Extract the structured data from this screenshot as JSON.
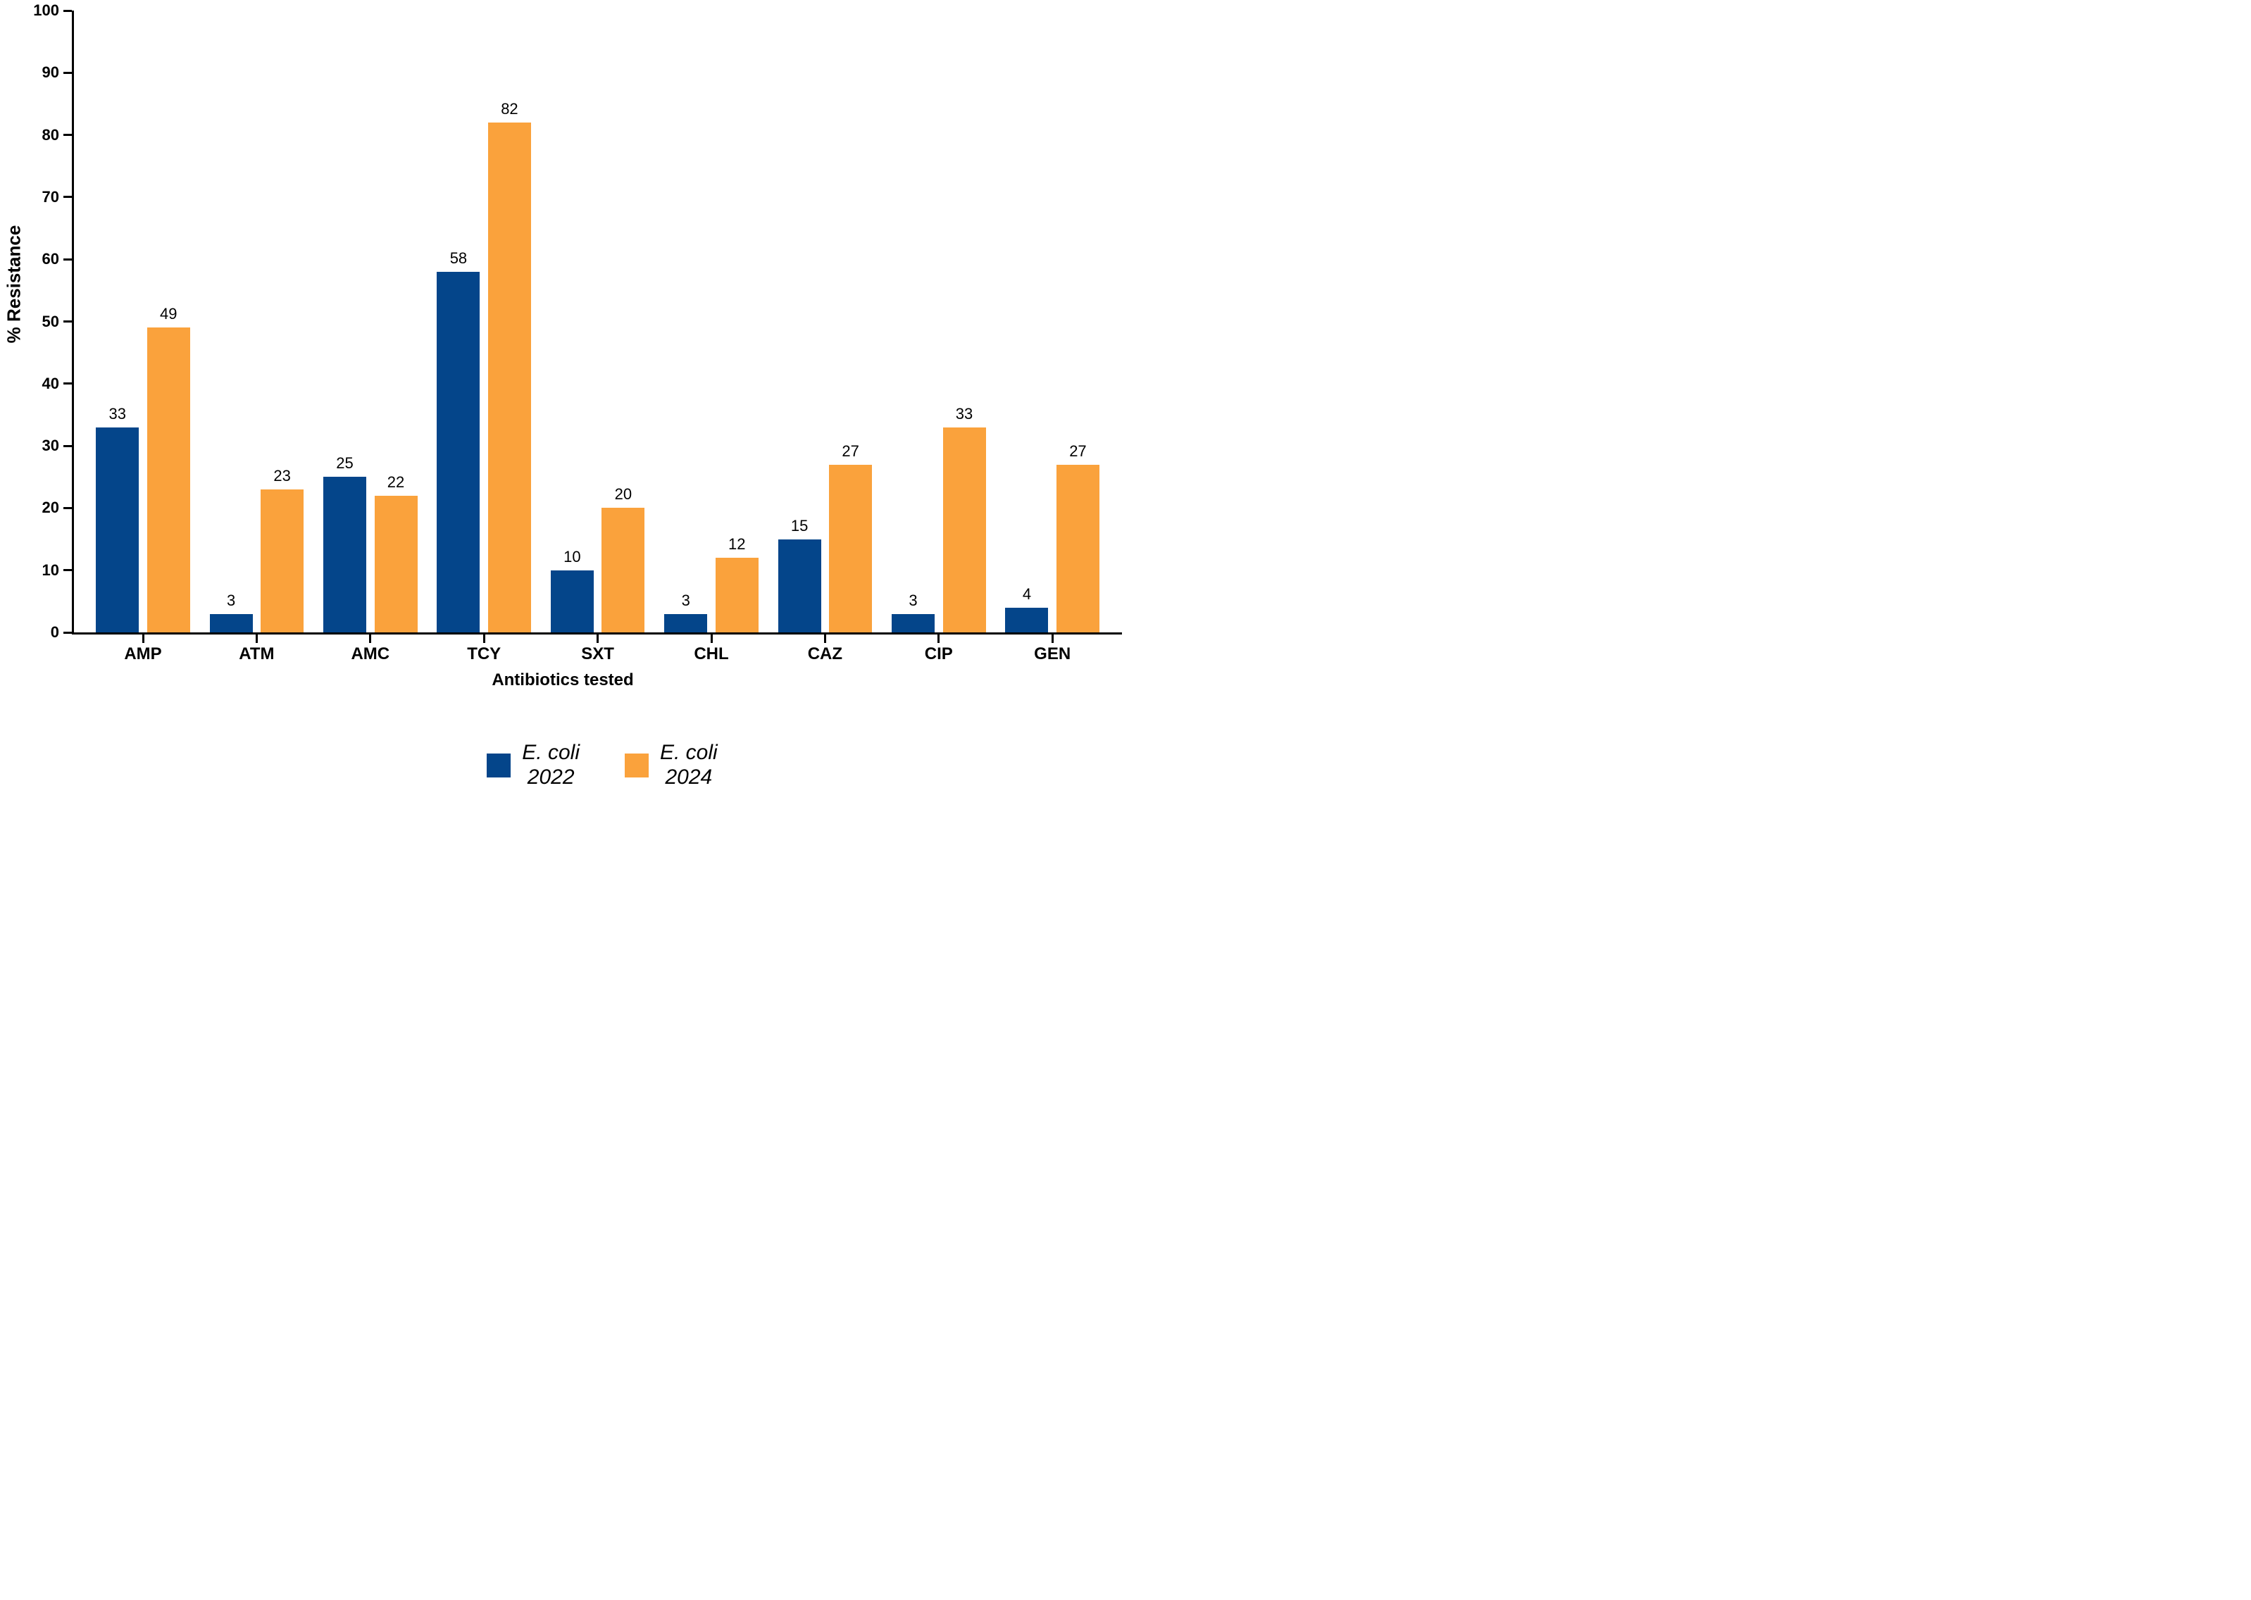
{
  "chart_data": {
    "type": "bar",
    "categories": [
      "AMP",
      "ATM",
      "AMC",
      "TCY",
      "SXT",
      "CHL",
      "CAZ",
      "CIP",
      "GEN"
    ],
    "series": [
      {
        "name": "E. coli",
        "year": "2022",
        "color": "#04458a",
        "values": [
          33,
          3,
          25,
          58,
          10,
          3,
          15,
          3,
          4
        ]
      },
      {
        "name": "E. coli",
        "year": "2024",
        "color": "#faa23c",
        "values": [
          49,
          23,
          22,
          82,
          20,
          12,
          27,
          33,
          27
        ]
      }
    ],
    "xlabel": "Antibiotics tested",
    "ylabel": "% Resistance",
    "ylim": [
      0,
      100
    ],
    "ytick_step": 10,
    "bar_value_labels": true,
    "grid": false,
    "legend_position": "bottom",
    "axis_color": "#000000",
    "background_color": "#ffffff"
  }
}
